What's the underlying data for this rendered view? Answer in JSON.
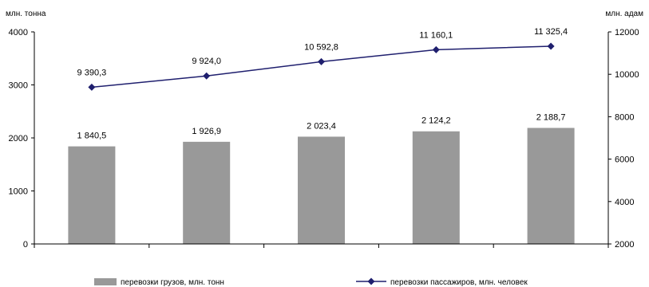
{
  "chart_data": {
    "type": "bar",
    "left_axis_unit": "млн. тонна",
    "right_axis_unit": "млн. адам",
    "categories": [
      "",
      "",
      "",
      "",
      ""
    ],
    "left_ylim": [
      0,
      4000
    ],
    "left_ticks": [
      "0",
      "1000",
      "2000",
      "3000",
      "4000"
    ],
    "right_ylim": [
      2000,
      12000
    ],
    "right_ticks": [
      "2000",
      "4000",
      "6000",
      "8000",
      "10000",
      "12000"
    ],
    "grid": false,
    "legend_position": "bottom",
    "series": [
      {
        "name": "перевозки грузов, млн. тонн",
        "type": "bar",
        "axis": "left",
        "color": "#999999",
        "values": [
          1840.5,
          1926.9,
          2023.4,
          2124.2,
          2188.7
        ],
        "labels": [
          "1 840,5",
          "1 926,9",
          "2 023,4",
          "2 124,2",
          "2 188,7"
        ]
      },
      {
        "name": "перевозки пассажиров, млн. человек",
        "type": "line",
        "axis": "right",
        "color": "#1f1f6e",
        "marker": "diamond",
        "values": [
          9390.3,
          9924.0,
          10592.8,
          11160.1,
          11325.4
        ],
        "labels": [
          "9 390,3",
          "9 924,0",
          "10 592,8",
          "11 160,1",
          "11 325,4"
        ]
      }
    ]
  }
}
